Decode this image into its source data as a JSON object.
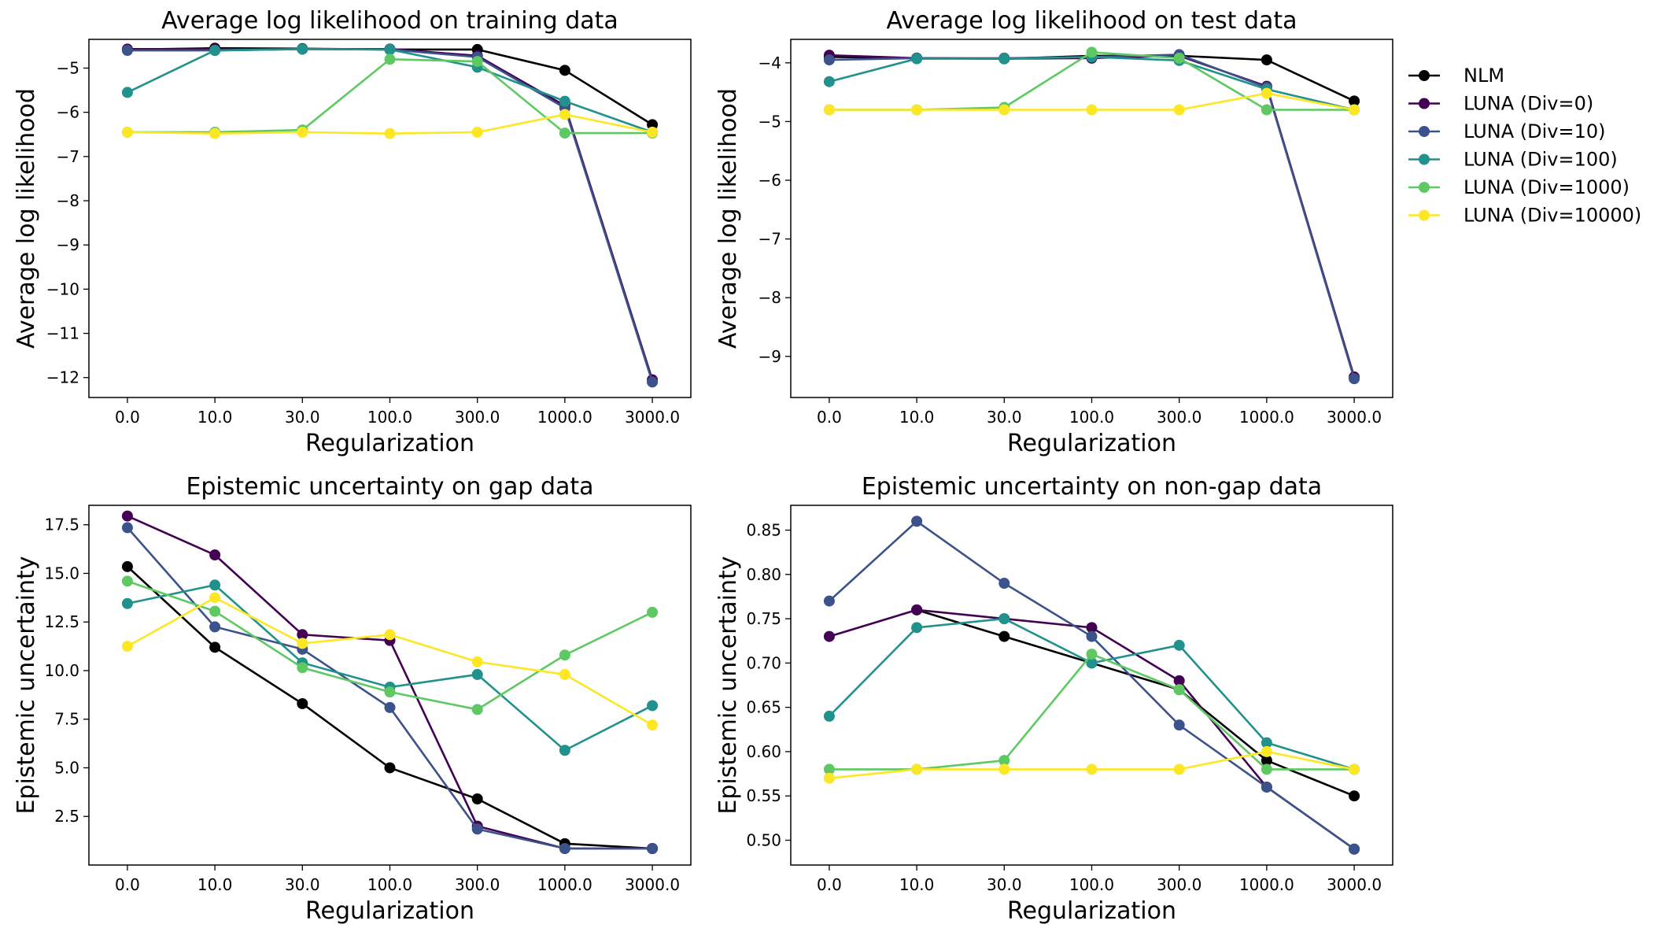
{
  "legend": {
    "placement": "right of top-right panel",
    "entries": [
      "NLM",
      "LUNA (Div=0)",
      "LUNA (Div=10)",
      "LUNA (Div=100)",
      "LUNA (Div=1000)",
      "LUNA (Div=10000)"
    ],
    "colors": [
      "#000000",
      "#440154",
      "#3b528b",
      "#21918c",
      "#5ec962",
      "#fde725"
    ]
  },
  "chart_data": [
    {
      "type": "line",
      "title": "Average log likelihood on training data",
      "xlabel": "Regularization",
      "ylabel": "Average log likelihood",
      "categories": [
        "0.0",
        "10.0",
        "30.0",
        "100.0",
        "300.0",
        "1000.0",
        "3000.0"
      ],
      "ylim": [
        -12.45,
        -4.35
      ],
      "yticks": [
        -12,
        -11,
        -10,
        -9,
        -8,
        -7,
        -6,
        -5
      ],
      "grid": false,
      "series": [
        {
          "name": "NLM",
          "values": [
            -4.58,
            -4.55,
            -4.56,
            -4.58,
            -4.58,
            -5.05,
            -6.28
          ]
        },
        {
          "name": "LUNA (Div=0)",
          "values": [
            -4.57,
            -4.57,
            -4.57,
            -4.57,
            -4.72,
            -5.85,
            -12.05
          ]
        },
        {
          "name": "LUNA (Div=10)",
          "values": [
            -4.6,
            -4.6,
            -4.57,
            -4.58,
            -4.75,
            -5.9,
            -12.1
          ]
        },
        {
          "name": "LUNA (Div=100)",
          "values": [
            -5.55,
            -4.6,
            -4.57,
            -4.58,
            -4.98,
            -5.75,
            -6.45
          ]
        },
        {
          "name": "LUNA (Div=1000)",
          "values": [
            -6.45,
            -6.45,
            -6.4,
            -4.8,
            -4.85,
            -6.47,
            -6.47
          ]
        },
        {
          "name": "LUNA (Div=10000)",
          "values": [
            -6.45,
            -6.48,
            -6.45,
            -6.48,
            -6.45,
            -6.05,
            -6.45
          ]
        }
      ]
    },
    {
      "type": "line",
      "title": "Average log likelihood on test data",
      "xlabel": "Regularization",
      "ylabel": "Average log likelihood",
      "categories": [
        "0.0",
        "10.0",
        "30.0",
        "100.0",
        "300.0",
        "1000.0",
        "3000.0"
      ],
      "ylim": [
        -9.7,
        -3.6
      ],
      "yticks": [
        -9,
        -8,
        -7,
        -6,
        -5,
        -4
      ],
      "grid": false,
      "series": [
        {
          "name": "NLM",
          "values": [
            -3.9,
            -3.92,
            -3.93,
            -3.88,
            -3.88,
            -3.95,
            -4.65
          ]
        },
        {
          "name": "LUNA (Div=0)",
          "values": [
            -3.87,
            -3.92,
            -3.93,
            -3.92,
            -3.88,
            -4.4,
            -9.35
          ]
        },
        {
          "name": "LUNA (Div=10)",
          "values": [
            -3.95,
            -3.92,
            -3.92,
            -3.9,
            -3.86,
            -4.42,
            -9.38
          ]
        },
        {
          "name": "LUNA (Div=100)",
          "values": [
            -4.32,
            -3.93,
            -3.93,
            -3.9,
            -3.96,
            -4.45,
            -4.8
          ]
        },
        {
          "name": "LUNA (Div=1000)",
          "values": [
            -4.8,
            -4.8,
            -4.76,
            -3.82,
            -3.92,
            -4.8,
            -4.8
          ]
        },
        {
          "name": "LUNA (Div=10000)",
          "values": [
            -4.8,
            -4.8,
            -4.8,
            -4.8,
            -4.8,
            -4.52,
            -4.8
          ]
        }
      ]
    },
    {
      "type": "line",
      "title": "Epistemic uncertainty on gap data",
      "xlabel": "Regularization",
      "ylabel": "Epistemic uncertainty",
      "categories": [
        "0.0",
        "10.0",
        "30.0",
        "100.0",
        "300.0",
        "1000.0",
        "3000.0"
      ],
      "ylim": [
        0,
        18.5
      ],
      "yticks": [
        2.5,
        5.0,
        7.5,
        10.0,
        12.5,
        15.0,
        17.5
      ],
      "grid": false,
      "series": [
        {
          "name": "NLM",
          "values": [
            15.35,
            11.2,
            8.3,
            5.0,
            3.4,
            1.1,
            0.85
          ]
        },
        {
          "name": "LUNA (Div=0)",
          "values": [
            17.95,
            15.95,
            11.85,
            11.55,
            2.0,
            0.85,
            0.85
          ]
        },
        {
          "name": "LUNA (Div=10)",
          "values": [
            17.35,
            12.25,
            11.1,
            8.1,
            1.85,
            0.85,
            0.85
          ]
        },
        {
          "name": "LUNA (Div=100)",
          "values": [
            13.45,
            14.4,
            10.4,
            9.15,
            9.8,
            5.9,
            8.2
          ]
        },
        {
          "name": "LUNA (Div=1000)",
          "values": [
            14.6,
            13.05,
            10.15,
            8.9,
            8.0,
            10.8,
            13.0
          ]
        },
        {
          "name": "LUNA (Div=10000)",
          "values": [
            11.25,
            13.75,
            11.4,
            11.85,
            10.45,
            9.8,
            7.2
          ]
        }
      ]
    },
    {
      "type": "line",
      "title": "Epistemic uncertainty on non-gap data",
      "xlabel": "Regularization",
      "ylabel": "Epistemic uncertainty",
      "categories": [
        "0.0",
        "10.0",
        "30.0",
        "100.0",
        "300.0",
        "1000.0",
        "3000.0"
      ],
      "ylim": [
        0.472,
        0.878
      ],
      "yticks": [
        0.5,
        0.55,
        0.6,
        0.65,
        0.7,
        0.75,
        0.8,
        0.85
      ],
      "ytick_labels": [
        "0.50",
        "0.55",
        "0.60",
        "0.65",
        "0.70",
        "0.75",
        "0.80",
        "0.85"
      ],
      "grid": false,
      "series": [
        {
          "name": "NLM",
          "values": [
            null,
            0.76,
            0.73,
            0.7,
            0.67,
            0.59,
            0.55
          ]
        },
        {
          "name": "LUNA (Div=0)",
          "values": [
            0.73,
            0.76,
            0.75,
            0.74,
            0.68,
            0.56,
            0.49
          ]
        },
        {
          "name": "LUNA (Div=10)",
          "values": [
            0.77,
            0.86,
            0.79,
            0.73,
            0.63,
            0.56,
            0.49
          ]
        },
        {
          "name": "LUNA (Div=100)",
          "values": [
            0.64,
            0.74,
            0.75,
            0.7,
            0.72,
            0.61,
            0.58
          ]
        },
        {
          "name": "LUNA (Div=1000)",
          "values": [
            0.58,
            0.58,
            0.59,
            0.71,
            0.67,
            0.58,
            0.58
          ]
        },
        {
          "name": "LUNA (Div=10000)",
          "values": [
            0.57,
            0.58,
            0.58,
            0.58,
            0.58,
            0.6,
            0.58
          ]
        }
      ]
    }
  ]
}
